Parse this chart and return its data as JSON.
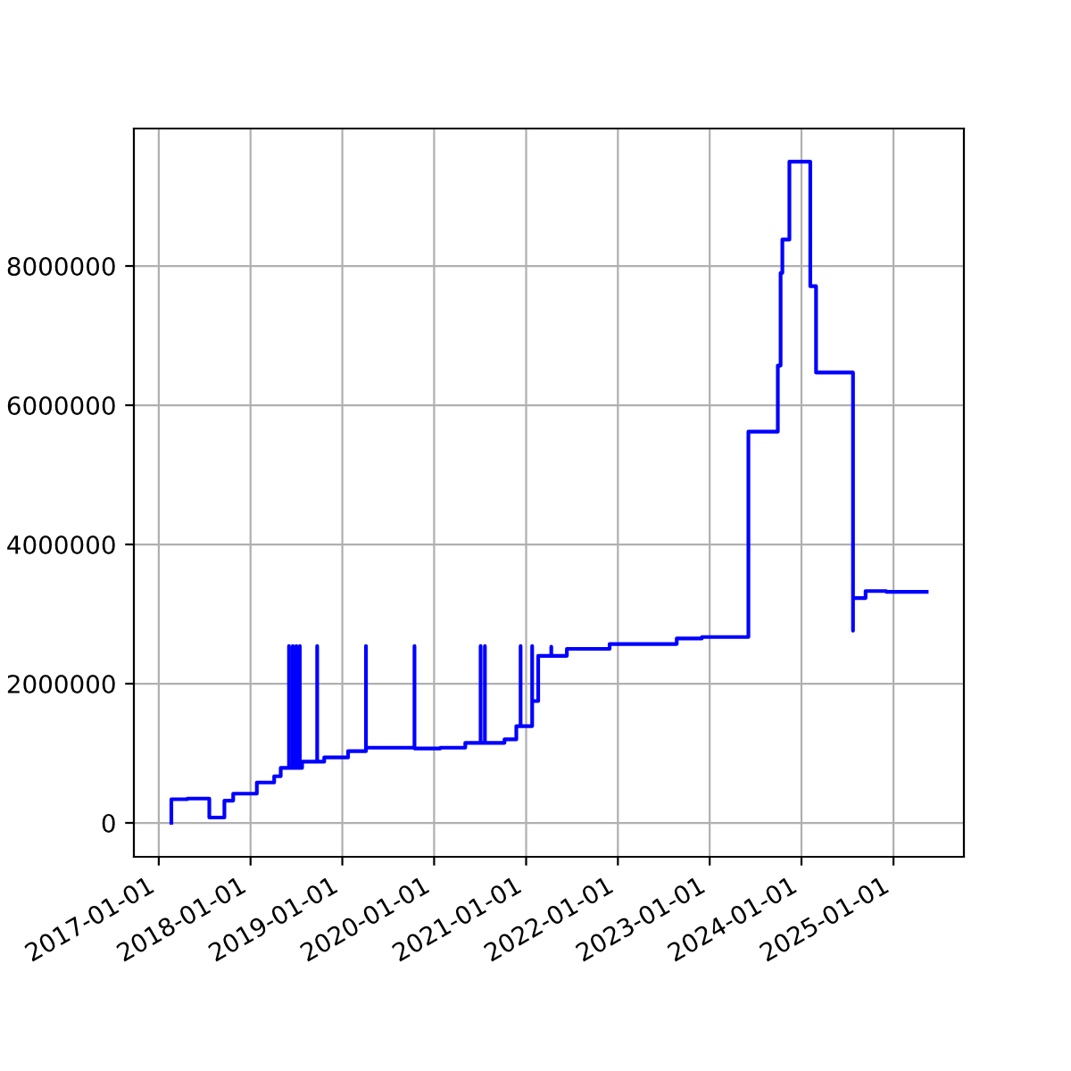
{
  "chart_data": {
    "type": "line",
    "grid": true,
    "marker": "none",
    "line_style": "solid",
    "xlim": [
      "2016-09-24",
      "2025-10-08"
    ],
    "ylim": [
      -487000,
      9975000
    ],
    "xticks": [
      "2017-01-01",
      "2018-01-01",
      "2019-01-01",
      "2020-01-01",
      "2021-01-01",
      "2022-01-01",
      "2023-01-01",
      "2024-01-01",
      "2025-01-01"
    ],
    "yticks": [
      0,
      2000000,
      4000000,
      6000000,
      8000000
    ],
    "series": [
      {
        "color": "#0000ff",
        "x": [
          "2017-02-20",
          "2017-02-20",
          "2017-04-25",
          "2017-04-25",
          "2017-07-21",
          "2017-07-21",
          "2017-09-19",
          "2017-09-19",
          "2017-10-24",
          "2017-10-24",
          "2018-01-26",
          "2018-01-26",
          "2018-04-05",
          "2018-04-05",
          "2018-05-01",
          "2018-05-01",
          "2018-06-03",
          "2018-06-03",
          "2018-06-03",
          "2018-06-18",
          "2018-06-18",
          "2018-06-18",
          "2018-07-02",
          "2018-07-02",
          "2018-07-02",
          "2018-07-16",
          "2018-07-16",
          "2018-07-16",
          "2018-07-25",
          "2018-07-25",
          "2018-09-23",
          "2018-09-23",
          "2018-09-23",
          "2018-10-21",
          "2018-10-21",
          "2019-01-24",
          "2019-01-24",
          "2019-04-05",
          "2019-04-05",
          "2019-04-05",
          "2019-10-15",
          "2019-10-15",
          "2019-10-15",
          "2020-01-26",
          "2020-01-26",
          "2020-05-04",
          "2020-05-04",
          "2020-07-04",
          "2020-07-04",
          "2020-07-04",
          "2020-07-21",
          "2020-07-21",
          "2020-07-21",
          "2020-10-07",
          "2020-10-07",
          "2020-11-23",
          "2020-11-23",
          "2020-12-10",
          "2020-12-10",
          "2020-12-10",
          "2021-01-25",
          "2021-01-25",
          "2021-01-25",
          "2021-02-18",
          "2021-02-18",
          "2021-04-11",
          "2021-04-11",
          "2021-04-11",
          "2021-06-12",
          "2021-06-12",
          "2021-11-29",
          "2021-11-29",
          "2022-08-23",
          "2022-08-23",
          "2022-12-01",
          "2022-12-01",
          "2023-06-04",
          "2023-06-04",
          "2023-09-29",
          "2023-09-29",
          "2023-10-10",
          "2023-10-10",
          "2023-10-17",
          "2023-10-17",
          "2023-11-14",
          "2023-11-14",
          "2024-02-05",
          "2024-02-05",
          "2024-02-28",
          "2024-02-28",
          "2024-07-24",
          "2024-07-24",
          "2024-07-24",
          "2024-07-24",
          "2024-07-24",
          "2024-09-12",
          "2024-09-12",
          "2024-12-03",
          "2024-12-03",
          "2025-05-13"
        ],
        "values": [
          0,
          340000,
          340000,
          350000,
          350000,
          77000,
          77000,
          320000,
          320000,
          420000,
          420000,
          580000,
          580000,
          670000,
          670000,
          790000,
          790000,
          2540000,
          790000,
          790000,
          2540000,
          790000,
          790000,
          2540000,
          790000,
          790000,
          2540000,
          790000,
          790000,
          880000,
          880000,
          2540000,
          880000,
          880000,
          940000,
          940000,
          1030000,
          1030000,
          2540000,
          1080000,
          1080000,
          2540000,
          1070000,
          1070000,
          1080000,
          1080000,
          1150000,
          1150000,
          2540000,
          1150000,
          1150000,
          2540000,
          1150000,
          1150000,
          1200000,
          1200000,
          1390000,
          1390000,
          2540000,
          1390000,
          1390000,
          2540000,
          1750000,
          1750000,
          2400000,
          2400000,
          2530000,
          2400000,
          2400000,
          2500000,
          2500000,
          2570000,
          2570000,
          2650000,
          2650000,
          2670000,
          2670000,
          5620000,
          5620000,
          6570000,
          6570000,
          7900000,
          7900000,
          8380000,
          8380000,
          9500000,
          9500000,
          7710000,
          7710000,
          6470000,
          6470000,
          5500000,
          5700000,
          2760000,
          3230000,
          3230000,
          3330000,
          3330000,
          3320000,
          3320000
        ]
      }
    ]
  }
}
